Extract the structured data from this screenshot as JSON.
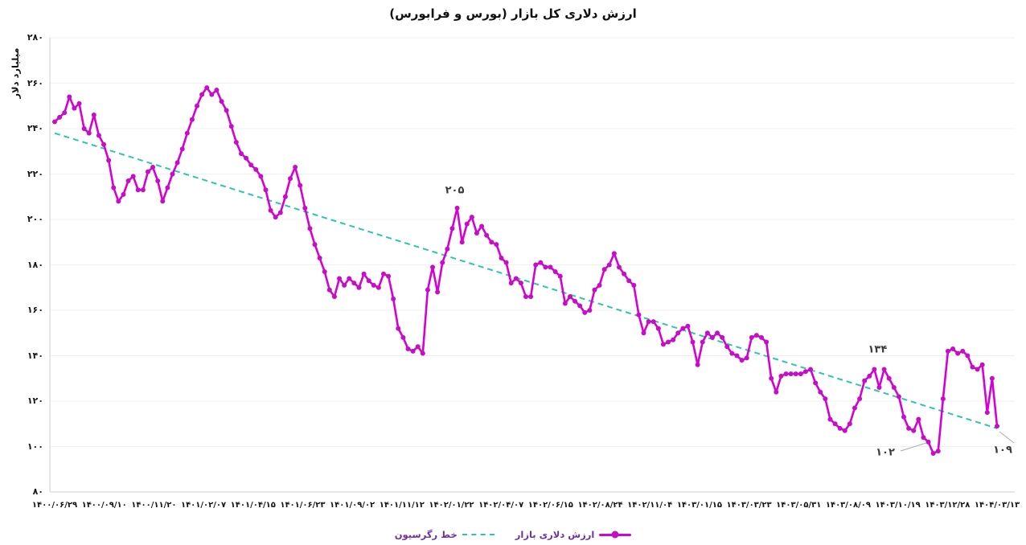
{
  "title": "ارزش دلاری کل بازار (بورس و فرابورس)",
  "y_axis_title": "میلیارد دلار",
  "legend": {
    "items": [
      {
        "label": "خط رگرسیون",
        "style": "dashed",
        "color": "#2CC5AE"
      },
      {
        "label": "ارزش دلاری بازار",
        "style": "line-marker",
        "color": "#D400D4"
      }
    ]
  },
  "colors": {
    "series_line": "#D400D4",
    "series_marker": "#C50FC5",
    "regression": "#2CC5AE",
    "gridline": "#F0F0F0",
    "axis_spine": "#CFCFCF",
    "annotation_text": "#3b3b3b",
    "leader_line": "#AAAAAA",
    "legend_text": "#7030A0"
  },
  "chart_data": {
    "type": "line",
    "title": "ارزش دلاری کل بازار (بورس و فرابورس)",
    "ylabel": "میلیارد دلار",
    "ylim": [
      80,
      280
    ],
    "y_tick_step": 20,
    "y_tick_labels": [
      "۲۸۰",
      "۲۶۰",
      "۲۴۰",
      "۲۲۰",
      "۲۰۰",
      "۱۸۰",
      "۱۶۰",
      "۱۴۰",
      "۱۲۰",
      "۱۰۰",
      "۸۰"
    ],
    "y_tick_values": [
      280,
      260,
      240,
      220,
      200,
      180,
      160,
      140,
      120,
      100,
      80
    ],
    "x_tick_labels": [
      "۱۴۰۰/۰۶/۲۹",
      "۱۴۰۰/۰۹/۱۰",
      "۱۴۰۰/۱۱/۲۰",
      "۱۴۰۱/۰۲/۰۷",
      "۱۴۰۱/۰۴/۱۵",
      "۱۴۰۱/۰۶/۲۳",
      "۱۴۰۱/۰۹/۰۲",
      "۱۴۰۱/۱۱/۱۲",
      "۱۴۰۲/۰۱/۲۲",
      "۱۴۰۲/۰۴/۰۷",
      "۱۴۰۲/۰۶/۱۵",
      "۱۴۰۲/۰۸/۲۴",
      "۱۴۰۲/۱۱/۰۴",
      "۱۴۰۳/۰۱/۱۵",
      "۱۴۰۳/۰۳/۲۳",
      "۱۴۰۳/۰۵/۳۱",
      "۱۴۰۳/۰۸/۰۹",
      "۱۴۰۳/۱۰/۱۹",
      "۱۴۰۳/۱۲/۲۸",
      "۱۴۰۴/۰۳/۱۳"
    ],
    "grid": "horizontal",
    "legend_position": "bottom",
    "series": [
      {
        "name": "ارزش دلاری بازار",
        "color": "#D400D4",
        "marker": "circle",
        "values": [
          243,
          245,
          247,
          254,
          249,
          251,
          240,
          238,
          246,
          237,
          233,
          226,
          214,
          208,
          211,
          217,
          219,
          213,
          213,
          221,
          223,
          217,
          208,
          214,
          220,
          225,
          231,
          238,
          244,
          250,
          255,
          258,
          255,
          257,
          252,
          248,
          241,
          234,
          229,
          227,
          224,
          222,
          219,
          213,
          204,
          201,
          203,
          210,
          218,
          223,
          215,
          205,
          196,
          189,
          183,
          177,
          169,
          166,
          174,
          171,
          174,
          172,
          170,
          176,
          173,
          171,
          170,
          176,
          175,
          165,
          152,
          148,
          143,
          142,
          144,
          141,
          169,
          179,
          168,
          181,
          187,
          196,
          205,
          190,
          198,
          201,
          194,
          197,
          193,
          190,
          189,
          183,
          181,
          172,
          174,
          172,
          166,
          166,
          180,
          181,
          179,
          179,
          177,
          175,
          163,
          166,
          164,
          162,
          159,
          160,
          169,
          171,
          178,
          180,
          185,
          179,
          176,
          173,
          171,
          158,
          150,
          155,
          155,
          152,
          145,
          146,
          147,
          150,
          152,
          153,
          146,
          136,
          146,
          150,
          148,
          150,
          148,
          144,
          141,
          140,
          138,
          139,
          148,
          149,
          148,
          146,
          130,
          124,
          131,
          132,
          132,
          132,
          132,
          133,
          134,
          128,
          124,
          121,
          112,
          110,
          108,
          107,
          110,
          117,
          121,
          129,
          131,
          134,
          126,
          134,
          130,
          126,
          122,
          113,
          108,
          107,
          112,
          104,
          102,
          97,
          98,
          121,
          142,
          143,
          141,
          142,
          140,
          135,
          134,
          136,
          115,
          130,
          109
        ]
      },
      {
        "name": "خط رگرسیون",
        "kind": "trend",
        "style": "dashed",
        "color": "#2CC5AE",
        "start": 238,
        "end": 108
      }
    ],
    "annotations": [
      {
        "text": "۲۰۵",
        "value": 205,
        "index": 82
      },
      {
        "text": "۱۳۴",
        "value": 134,
        "index": 167
      },
      {
        "text": "۱۰۲",
        "value": 102,
        "index": 178,
        "leader": true
      },
      {
        "text": "۱۰۹",
        "value": 109,
        "index": 192,
        "leader": true
      }
    ]
  }
}
